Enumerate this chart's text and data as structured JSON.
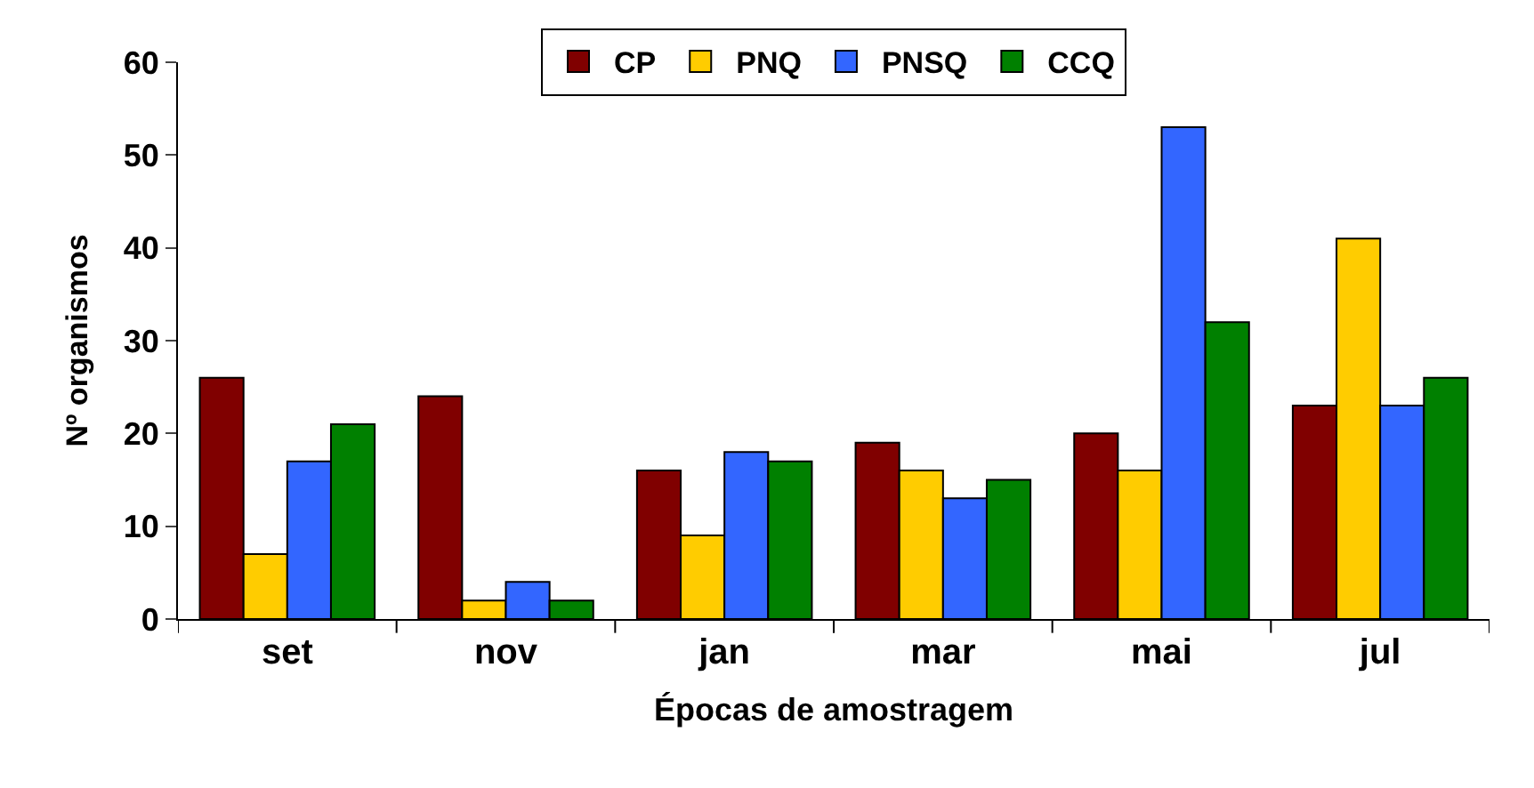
{
  "chart_data": {
    "type": "bar",
    "xlabel": "Épocas de amostragem",
    "ylabel": "Nº organismos",
    "categories": [
      "set",
      "nov",
      "jan",
      "mar",
      "mai",
      "jul"
    ],
    "series": [
      {
        "name": "CP",
        "color": "#800000",
        "values": [
          26,
          24,
          16,
          19,
          20,
          23
        ]
      },
      {
        "name": "PNQ",
        "color": "#ffcc00",
        "values": [
          7,
          2,
          9,
          16,
          16,
          41
        ]
      },
      {
        "name": "PNSQ",
        "color": "#3366ff",
        "values": [
          17,
          4,
          18,
          13,
          53,
          23
        ]
      },
      {
        "name": "CCQ",
        "color": "#008000",
        "values": [
          21,
          2,
          17,
          15,
          32,
          26
        ]
      }
    ],
    "ylim": [
      0,
      60
    ],
    "yticks": [
      0,
      10,
      20,
      30,
      40,
      50,
      60
    ],
    "legend": "top"
  }
}
